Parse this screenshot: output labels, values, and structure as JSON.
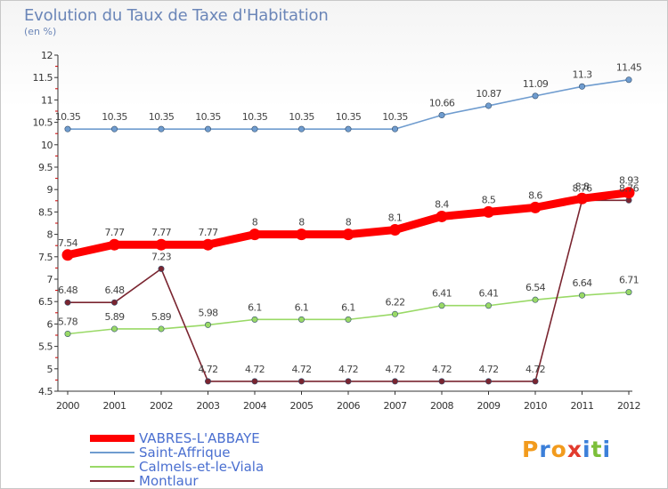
{
  "chart_data": {
    "type": "line",
    "title": "Evolution du Taux de Taxe d'Habitation",
    "subtitle": "(en %)",
    "x": [
      "2000",
      "2001",
      "2002",
      "2003",
      "2004",
      "2005",
      "2006",
      "2007",
      "2008",
      "2009",
      "2010",
      "2011",
      "2012"
    ],
    "ylim": [
      4.5,
      12
    ],
    "yticks": [
      "4.5",
      "5",
      "5.5",
      "6",
      "6.5",
      "7",
      "7.5",
      "8",
      "8.5",
      "9",
      "9.5",
      "10",
      "10.5",
      "11",
      "11.5",
      "12"
    ],
    "grid": false,
    "legend_position": "bottom-left",
    "series": [
      {
        "name": "VABRES-L'ABBAYE",
        "color": "#ff0000",
        "values": [
          7.54,
          7.77,
          7.77,
          7.77,
          8,
          8,
          8,
          8.1,
          8.4,
          8.5,
          8.6,
          8.8,
          8.93
        ],
        "labels": [
          "7.54",
          "7.77",
          "7.77",
          "7.77",
          "8",
          "8",
          "8",
          "8.1",
          "8.4",
          "8.5",
          "8.6",
          "8.8",
          "8.93"
        ]
      },
      {
        "name": "Saint-Affrique",
        "color": "#6f9ccf",
        "values": [
          10.35,
          10.35,
          10.35,
          10.35,
          10.35,
          10.35,
          10.35,
          10.35,
          10.66,
          10.87,
          11.09,
          11.3,
          11.45
        ],
        "labels": [
          "10.35",
          "10.35",
          "10.35",
          "10.35",
          "10.35",
          "10.35",
          "10.35",
          "10.35",
          "10.66",
          "10.87",
          "11.09",
          "11.3",
          "11.45"
        ]
      },
      {
        "name": "Calmels-et-le-Viala",
        "color": "#99d966",
        "values": [
          5.78,
          5.89,
          5.89,
          5.98,
          6.1,
          6.1,
          6.1,
          6.22,
          6.41,
          6.41,
          6.54,
          6.64,
          6.71
        ],
        "labels": [
          "5.78",
          "5.89",
          "5.89",
          "5.98",
          "6.1",
          "6.1",
          "6.1",
          "6.22",
          "6.41",
          "6.41",
          "6.54",
          "6.64",
          "6.71"
        ]
      },
      {
        "name": "Montlaur",
        "color": "#7a2530",
        "values": [
          6.48,
          6.48,
          7.23,
          4.72,
          4.72,
          4.72,
          4.72,
          4.72,
          4.72,
          4.72,
          4.72,
          8.76,
          8.76
        ],
        "labels": [
          "6.48",
          "6.48",
          "7.23",
          "4.72",
          "4.72",
          "4.72",
          "4.72",
          "4.72",
          "4.72",
          "4.72",
          "4.72",
          "8.76",
          "8.76"
        ]
      }
    ]
  },
  "logo": {
    "letters": [
      "P",
      "r",
      "o",
      "x",
      "i",
      "t",
      "i"
    ],
    "colors": [
      "#f29b1d",
      "#3b7fd9",
      "#f29b1d",
      "#e23b2e",
      "#3b7fd9",
      "#7cbf3a",
      "#3b7fd9"
    ]
  }
}
